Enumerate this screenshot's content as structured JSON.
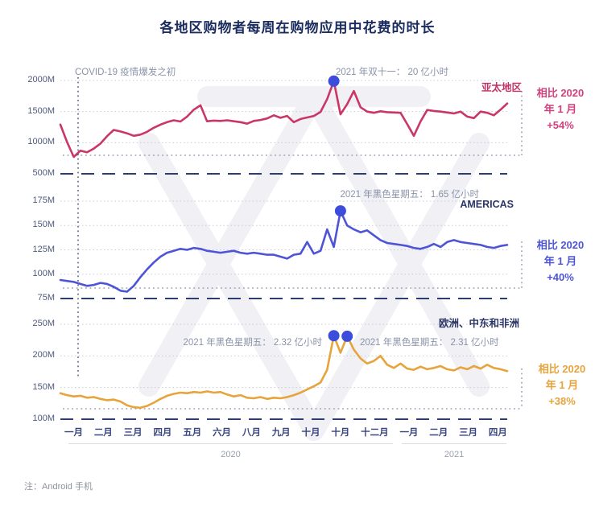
{
  "title": "各地区购物者每周在购物应用中花费的时长",
  "covid_annotation": "COVID-19 疫情爆发之初",
  "note": "注：Android 手机",
  "x_axis": {
    "years": [
      "2020",
      "2021"
    ]
  },
  "chart_data": {
    "type": "line",
    "title": "各地区购物者每周在购物应用中花费的时长",
    "unit": "M 小时 / 每周",
    "grid": "dotted-horizontal",
    "x_labels": [
      "一月",
      "二月",
      "三月",
      "四月",
      "五月",
      "六月",
      "八月",
      "九月",
      "十月",
      "十月",
      "十二月",
      "一月",
      "二月",
      "三月",
      "四月"
    ],
    "panels": [
      {
        "region": "亚太地区",
        "color": "#ca3766",
        "ylim": [
          500,
          2000
        ],
        "yticks": [
          {
            "label": "2000M",
            "value": 2000
          },
          {
            "label": "1500M",
            "value": 1500
          },
          {
            "label": "1000M",
            "value": 1000
          },
          {
            "label": "500M",
            "value": 500
          }
        ],
        "values": [
          1290,
          1010,
          772,
          872,
          845,
          905,
          985,
          1105,
          1205,
          1180,
          1150,
          1110,
          1130,
          1175,
          1240,
          1290,
          1330,
          1360,
          1340,
          1420,
          1530,
          1600,
          1345,
          1355,
          1350,
          1360,
          1345,
          1330,
          1305,
          1350,
          1365,
          1390,
          1440,
          1400,
          1430,
          1330,
          1380,
          1405,
          1430,
          1495,
          1700,
          1990,
          1455,
          1620,
          1830,
          1570,
          1500,
          1480,
          1505,
          1490,
          1485,
          1480,
          1300,
          1110,
          1340,
          1525,
          1510,
          1500,
          1485,
          1470,
          1500,
          1420,
          1395,
          1500,
          1480,
          1440,
          1530,
          1630
        ],
        "markers": [
          41
        ],
        "annotation": "2021 年双十一：  20 亿小时",
        "compare": {
          "line1": "相比 2020",
          "line2": "年 1 月",
          "line3": "+54%"
        }
      },
      {
        "region": "AMERICAS",
        "color": "#4d55d6",
        "ylim": [
          75,
          175
        ],
        "yticks": [
          {
            "label": "175M",
            "value": 175
          },
          {
            "label": "150M",
            "value": 150
          },
          {
            "label": "125M",
            "value": 125
          },
          {
            "label": "100M",
            "value": 100
          },
          {
            "label": "75M",
            "value": 75
          }
        ],
        "values": [
          94,
          93,
          92,
          90,
          88,
          89,
          91,
          90,
          87,
          83,
          82,
          88,
          97,
          105,
          112,
          118,
          122,
          124,
          126,
          125,
          127,
          126,
          124,
          123,
          122,
          123,
          124,
          122,
          121,
          122,
          121,
          120,
          120,
          118,
          116,
          120,
          121,
          133,
          121,
          124,
          146,
          128,
          165,
          150,
          146,
          143,
          145,
          140,
          135,
          132,
          131,
          130,
          129,
          127,
          126,
          128,
          131,
          128,
          133,
          135,
          133,
          132,
          131,
          130,
          128,
          127,
          129,
          130
        ],
        "markers": [
          42
        ],
        "annotation": "2021 年黑色星期五：  1.65 亿小时",
        "compare": {
          "line1": "相比 2020",
          "line2": "年 1 月",
          "line3": "+40%"
        }
      },
      {
        "region": "欧洲、中东和非洲",
        "color": "#e7a33c",
        "ylim": [
          100,
          250
        ],
        "yticks": [
          {
            "label": "250M",
            "value": 250
          },
          {
            "label": "200M",
            "value": 200
          },
          {
            "label": "150M",
            "value": 150
          },
          {
            "label": "100M",
            "value": 100
          }
        ],
        "values": [
          141,
          138,
          136,
          137,
          134,
          135,
          132,
          130,
          131,
          128,
          122,
          119,
          118,
          121,
          126,
          132,
          137,
          140,
          142,
          141,
          143,
          142,
          144,
          142,
          143,
          139,
          136,
          138,
          134,
          133,
          135,
          132,
          134,
          133,
          135,
          138,
          142,
          147,
          152,
          158,
          178,
          232,
          205,
          231,
          210,
          196,
          188,
          192,
          200,
          186,
          181,
          188,
          180,
          178,
          183,
          179,
          181,
          184,
          179,
          177,
          182,
          179,
          184,
          180,
          186,
          181,
          179,
          176
        ],
        "markers": [
          41,
          43
        ],
        "annotation_left": "2021 年黑色星期五：  2.32 亿小时",
        "annotation_right": "2021 年黑色星期五：  2.31 亿小时",
        "compare": {
          "line1": "相比 2020",
          "line2": "年 1 月",
          "line3": "+38%"
        }
      }
    ]
  }
}
